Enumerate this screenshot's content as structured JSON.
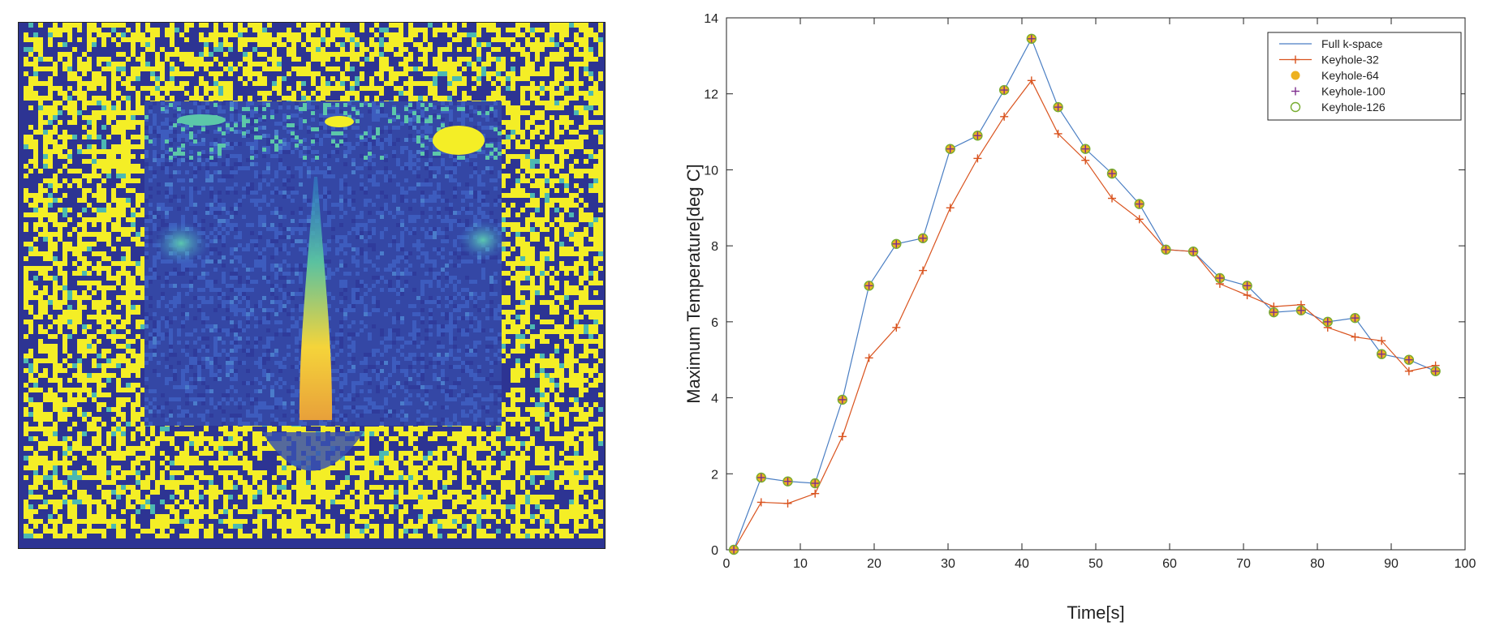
{
  "chart_data": {
    "type": "line",
    "title": "",
    "xlabel": "Time[s]",
    "ylabel": "Maximum Temperature[deg C]",
    "xlim": [
      0,
      100
    ],
    "ylim": [
      0,
      14
    ],
    "xticks": [
      0,
      10,
      20,
      30,
      40,
      50,
      60,
      70,
      80,
      90,
      100
    ],
    "yticks": [
      0,
      2,
      4,
      6,
      8,
      10,
      12,
      14
    ],
    "grid": false,
    "legend_position": "top-right",
    "series": [
      {
        "name": "Full k-space",
        "color": "#4a7ec3",
        "marker": "none",
        "x": [
          1,
          4.7,
          8.3,
          12,
          15.7,
          19.3,
          23,
          26.6,
          30.3,
          34,
          37.6,
          41.3,
          44.9,
          48.6,
          52.2,
          55.9,
          59.5,
          63.2,
          66.8,
          70.5,
          74.1,
          77.8,
          81.4,
          85.1,
          88.7,
          92.4,
          96
        ],
        "values": [
          0,
          1.9,
          1.8,
          1.75,
          3.95,
          6.95,
          8.05,
          8.2,
          10.55,
          10.9,
          12.1,
          13.45,
          11.65,
          10.55,
          9.9,
          9.1,
          7.9,
          7.85,
          7.15,
          6.95,
          6.25,
          6.3,
          6.0,
          6.1,
          5.15,
          5.0,
          4.7
        ]
      },
      {
        "name": "Keyhole-32",
        "color": "#d9531e",
        "marker": "plus",
        "x": [
          1,
          4.7,
          8.3,
          12,
          15.7,
          19.3,
          23,
          26.6,
          30.3,
          34,
          37.6,
          41.3,
          44.9,
          48.6,
          52.2,
          55.9,
          59.5,
          63.2,
          66.8,
          70.5,
          74.1,
          77.8,
          81.4,
          85.1,
          88.7,
          92.4,
          96
        ],
        "values": [
          0,
          1.25,
          1.22,
          1.48,
          2.98,
          5.05,
          5.85,
          7.35,
          9.0,
          10.3,
          11.4,
          12.35,
          10.95,
          10.25,
          9.25,
          8.7,
          7.9,
          7.85,
          7.0,
          6.7,
          6.4,
          6.45,
          5.85,
          5.6,
          5.5,
          4.7,
          4.85
        ]
      },
      {
        "name": "Keyhole-64",
        "color": "#edb120",
        "marker": "asterisk",
        "x": [
          1,
          4.7,
          8.3,
          12,
          15.7,
          19.3,
          23,
          26.6,
          30.3,
          34,
          37.6,
          41.3,
          44.9,
          48.6,
          52.2,
          55.9,
          59.5,
          63.2,
          66.8,
          70.5,
          74.1,
          77.8,
          81.4,
          85.1,
          88.7,
          92.4,
          96
        ],
        "values": [
          0,
          1.9,
          1.8,
          1.75,
          3.95,
          6.95,
          8.05,
          8.2,
          10.55,
          10.9,
          12.1,
          13.45,
          11.65,
          10.55,
          9.9,
          9.1,
          7.9,
          7.85,
          7.15,
          6.95,
          6.25,
          6.3,
          6.0,
          6.1,
          5.15,
          5.0,
          4.7
        ]
      },
      {
        "name": "Keyhole-100",
        "color": "#7e2f8e",
        "marker": "plus",
        "x": [
          1,
          4.7,
          8.3,
          12,
          15.7,
          19.3,
          23,
          26.6,
          30.3,
          34,
          37.6,
          41.3,
          44.9,
          48.6,
          52.2,
          55.9,
          59.5,
          63.2,
          66.8,
          70.5,
          74.1,
          77.8,
          81.4,
          85.1,
          88.7,
          92.4,
          96
        ],
        "values": [
          0,
          1.9,
          1.8,
          1.75,
          3.95,
          6.95,
          8.05,
          8.2,
          10.55,
          10.9,
          12.1,
          13.45,
          11.65,
          10.55,
          9.9,
          9.1,
          7.9,
          7.85,
          7.15,
          6.95,
          6.25,
          6.3,
          6.0,
          6.1,
          5.15,
          5.0,
          4.7
        ]
      },
      {
        "name": "Keyhole-126",
        "color": "#77ac30",
        "marker": "circle",
        "x": [
          1,
          4.7,
          8.3,
          12,
          15.7,
          19.3,
          23,
          26.6,
          30.3,
          34,
          37.6,
          41.3,
          44.9,
          48.6,
          52.2,
          55.9,
          59.5,
          63.2,
          66.8,
          70.5,
          74.1,
          77.8,
          81.4,
          85.1,
          88.7,
          92.4,
          96
        ],
        "values": [
          0,
          1.9,
          1.8,
          1.75,
          3.95,
          6.95,
          8.05,
          8.2,
          10.55,
          10.9,
          12.1,
          13.45,
          11.65,
          10.55,
          9.9,
          9.1,
          7.9,
          7.85,
          7.15,
          6.95,
          6.25,
          6.3,
          6.0,
          6.1,
          5.15,
          5.0,
          4.7
        ]
      }
    ]
  },
  "image_panel": {
    "type": "MRI temperature map (noise-filled background, yellow heating region)",
    "colors": {
      "background": "#2d3493",
      "noise": "#f4ee26",
      "tissue": "#3951b5",
      "heat_low": "#2f9bd0",
      "heat_high": "#f5d43a"
    }
  }
}
